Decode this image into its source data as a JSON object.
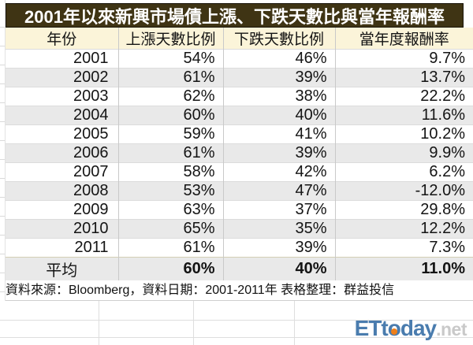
{
  "chart_data": {
    "type": "table",
    "title": "2001年以來新興市場債上漲、下跌天數比與當年報酬率",
    "columns": [
      "年份",
      "上漲天數比例",
      "下跌天數比例",
      "當年度報酬率"
    ],
    "rows": [
      [
        "2001",
        "54%",
        "46%",
        "9.7%"
      ],
      [
        "2002",
        "61%",
        "39%",
        "13.7%"
      ],
      [
        "2003",
        "62%",
        "38%",
        "22.2%"
      ],
      [
        "2004",
        "60%",
        "40%",
        "11.6%"
      ],
      [
        "2005",
        "59%",
        "41%",
        "10.2%"
      ],
      [
        "2006",
        "61%",
        "39%",
        "9.9%"
      ],
      [
        "2007",
        "58%",
        "42%",
        "6.2%"
      ],
      [
        "2008",
        "53%",
        "47%",
        "-12.0%"
      ],
      [
        "2009",
        "63%",
        "37%",
        "29.8%"
      ],
      [
        "2010",
        "65%",
        "35%",
        "12.2%"
      ],
      [
        "2011",
        "61%",
        "39%",
        "7.3%"
      ]
    ],
    "average": [
      "平均",
      "60%",
      "40%",
      "11.0%"
    ],
    "source_note": "資料來源：Bloomberg，資料日期：2001-2011年 表格整理：群益投信"
  },
  "logo": {
    "part1": "ETt",
    "o": "o",
    "part2": "day",
    "suffix": ".net"
  },
  "colors": {
    "title_bg": "#3f3414",
    "header_bg": "#fbf4d9",
    "alt_row_bg": "#e9e9e9",
    "grid_line": "#c9c9c9",
    "logo_blue": "#4a7cae",
    "logo_dot_orange": "#ef7f1a",
    "logo_suffix_gray": "#c9c9c9"
  }
}
